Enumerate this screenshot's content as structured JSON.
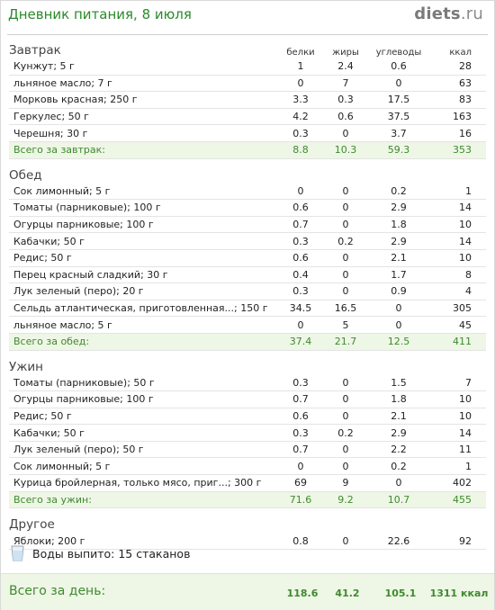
{
  "header": {
    "title": "Дневник питания, 8 июля",
    "logo_main": "diets",
    "logo_domain": ".ru"
  },
  "columns": {
    "protein": "белки",
    "fat": "жиры",
    "carbs": "углеводы",
    "kcal": "ккал"
  },
  "meals": [
    {
      "name": "Завтрак",
      "items": [
        {
          "name": "Кунжут; 5 г",
          "protein": "1",
          "fat": "2.4",
          "carbs": "0.6",
          "kcal": "28"
        },
        {
          "name": "льняное масло; 7 г",
          "protein": "0",
          "fat": "7",
          "carbs": "0",
          "kcal": "63"
        },
        {
          "name": "Морковь красная; 250 г",
          "protein": "3.3",
          "fat": "0.3",
          "carbs": "17.5",
          "kcal": "83"
        },
        {
          "name": "Геркулес; 50 г",
          "protein": "4.2",
          "fat": "0.6",
          "carbs": "37.5",
          "kcal": "163"
        },
        {
          "name": "Черешня; 30 г",
          "protein": "0.3",
          "fat": "0",
          "carbs": "3.7",
          "kcal": "16"
        }
      ],
      "total": {
        "label": "Всего за завтрак:",
        "protein": "8.8",
        "fat": "10.3",
        "carbs": "59.3",
        "kcal": "353"
      }
    },
    {
      "name": "Обед",
      "items": [
        {
          "name": "Сок лимонный; 5 г",
          "protein": "0",
          "fat": "0",
          "carbs": "0.2",
          "kcal": "1"
        },
        {
          "name": "Томаты (парниковые); 100 г",
          "protein": "0.6",
          "fat": "0",
          "carbs": "2.9",
          "kcal": "14"
        },
        {
          "name": "Огурцы парниковые; 100 г",
          "protein": "0.7",
          "fat": "0",
          "carbs": "1.8",
          "kcal": "10"
        },
        {
          "name": "Кабачки; 50 г",
          "protein": "0.3",
          "fat": "0.2",
          "carbs": "2.9",
          "kcal": "14"
        },
        {
          "name": "Редис; 50 г",
          "protein": "0.6",
          "fat": "0",
          "carbs": "2.1",
          "kcal": "10"
        },
        {
          "name": "Перец красный сладкий; 30 г",
          "protein": "0.4",
          "fat": "0",
          "carbs": "1.7",
          "kcal": "8"
        },
        {
          "name": "Лук зеленый (перо); 20 г",
          "protein": "0.3",
          "fat": "0",
          "carbs": "0.9",
          "kcal": "4"
        },
        {
          "name": "Сельдь атлантическая, приготовленная...; 150 г",
          "protein": "34.5",
          "fat": "16.5",
          "carbs": "0",
          "kcal": "305"
        },
        {
          "name": "льняное масло; 5 г",
          "protein": "0",
          "fat": "5",
          "carbs": "0",
          "kcal": "45"
        }
      ],
      "total": {
        "label": "Всего за обед:",
        "protein": "37.4",
        "fat": "21.7",
        "carbs": "12.5",
        "kcal": "411"
      }
    },
    {
      "name": "Ужин",
      "items": [
        {
          "name": "Томаты (парниковые); 50 г",
          "protein": "0.3",
          "fat": "0",
          "carbs": "1.5",
          "kcal": "7"
        },
        {
          "name": "Огурцы парниковые; 100 г",
          "protein": "0.7",
          "fat": "0",
          "carbs": "1.8",
          "kcal": "10"
        },
        {
          "name": "Редис; 50 г",
          "protein": "0.6",
          "fat": "0",
          "carbs": "2.1",
          "kcal": "10"
        },
        {
          "name": "Кабачки; 50 г",
          "protein": "0.3",
          "fat": "0.2",
          "carbs": "2.9",
          "kcal": "14"
        },
        {
          "name": "Лук зеленый (перо); 50 г",
          "protein": "0.7",
          "fat": "0",
          "carbs": "2.2",
          "kcal": "11"
        },
        {
          "name": "Сок лимонный; 5 г",
          "protein": "0",
          "fat": "0",
          "carbs": "0.2",
          "kcal": "1"
        },
        {
          "name": "Курица бройлерная, только мясо, приг...; 300 г",
          "protein": "69",
          "fat": "9",
          "carbs": "0",
          "kcal": "402"
        }
      ],
      "total": {
        "label": "Всего за ужин:",
        "protein": "71.6",
        "fat": "9.2",
        "carbs": "10.7",
        "kcal": "455"
      }
    },
    {
      "name": "Другое",
      "items": [
        {
          "name": "Яблоки; 200 г",
          "protein": "0.8",
          "fat": "0",
          "carbs": "22.6",
          "kcal": "92"
        }
      ],
      "total": null
    }
  ],
  "water": {
    "text": "Воды выпито: 15 стаканов"
  },
  "day_total": {
    "label": "Всего за день:",
    "protein": "118.6",
    "fat": "41.2",
    "carbs": "105.1",
    "kcal": "1311 ккал"
  },
  "colors": {
    "accent_green": "#3f8a2e",
    "title_green": "#2a8a2a",
    "total_bg": "#eef6e6"
  }
}
